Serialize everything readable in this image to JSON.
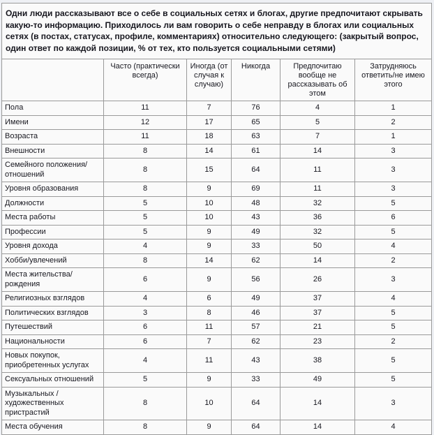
{
  "intro": "Одни люди рассказывают все о себе в социальных сетях и блогах, другие предпочитают скрывать какую-то информацию. Приходилось ли вам говорить о себе неправду в блогах или социальных сетях (в постах, статусах, профиле, комментариях) относительно следующего: (закрытый вопрос, один ответ по каждой позиции, % от тех, кто пользуется социальными сетями)",
  "columns": [
    "",
    "Часто (практически всегда)",
    "Иногда (от случая к случаю)",
    "Никогда",
    "Предпочитаю вообще не рассказывать об этом",
    "Затрудняюсь ответить/не имею этого"
  ],
  "chart_data": {
    "type": "table",
    "title": "Приходилось ли вам говорить о себе неправду в блогах или социальных сетях (% от тех, кто пользуется социальными сетями)",
    "columns": [
      "Часто (практически всегда)",
      "Иногда (от случая к случаю)",
      "Никогда",
      "Предпочитаю вообще не рассказывать об этом",
      "Затрудняюсь ответить/не имею этого"
    ],
    "rows": [
      {
        "label": "Пола",
        "values": [
          11,
          7,
          76,
          4,
          1
        ]
      },
      {
        "label": "Имени",
        "values": [
          12,
          17,
          65,
          5,
          2
        ]
      },
      {
        "label": "Возраста",
        "values": [
          11,
          18,
          63,
          7,
          1
        ]
      },
      {
        "label": "Внешности",
        "values": [
          8,
          14,
          61,
          14,
          3
        ]
      },
      {
        "label": "Семейного положения/отношений",
        "values": [
          8,
          15,
          64,
          11,
          3
        ]
      },
      {
        "label": "Уровня образования",
        "values": [
          8,
          9,
          69,
          11,
          3
        ]
      },
      {
        "label": "Должности",
        "values": [
          5,
          10,
          48,
          32,
          5
        ]
      },
      {
        "label": "Места работы",
        "values": [
          5,
          10,
          43,
          36,
          6
        ]
      },
      {
        "label": "Профессии",
        "values": [
          5,
          9,
          49,
          32,
          5
        ]
      },
      {
        "label": "Уровня дохода",
        "values": [
          4,
          9,
          33,
          50,
          4
        ]
      },
      {
        "label": "Хобби/увлечений",
        "values": [
          8,
          14,
          62,
          14,
          2
        ]
      },
      {
        "label": "Места жительства/рождения",
        "values": [
          6,
          9,
          56,
          26,
          3
        ]
      },
      {
        "label": "Религиозных взглядов",
        "values": [
          4,
          6,
          49,
          37,
          4
        ]
      },
      {
        "label": "Политических взглядов",
        "values": [
          3,
          8,
          46,
          37,
          5
        ]
      },
      {
        "label": "Путешествий",
        "values": [
          6,
          11,
          57,
          21,
          5
        ]
      },
      {
        "label": "Национальности",
        "values": [
          6,
          7,
          62,
          23,
          2
        ]
      },
      {
        "label": "Новых покупок, приобретенных услугах",
        "values": [
          4,
          11,
          43,
          38,
          5
        ]
      },
      {
        "label": "Сексуальных отношений",
        "values": [
          5,
          9,
          33,
          49,
          5
        ]
      },
      {
        "label": "Музыкальных / художественных пристрастий",
        "values": [
          8,
          10,
          64,
          14,
          3
        ]
      },
      {
        "label": "Места обучения",
        "values": [
          8,
          9,
          64,
          14,
          4
        ]
      }
    ]
  },
  "colors": {
    "page_bg": "#eef0f4",
    "cell_bg": "#fafafa",
    "border": "#9a9a9a",
    "outer_border": "#7e7e7e",
    "text": "#17171f"
  }
}
